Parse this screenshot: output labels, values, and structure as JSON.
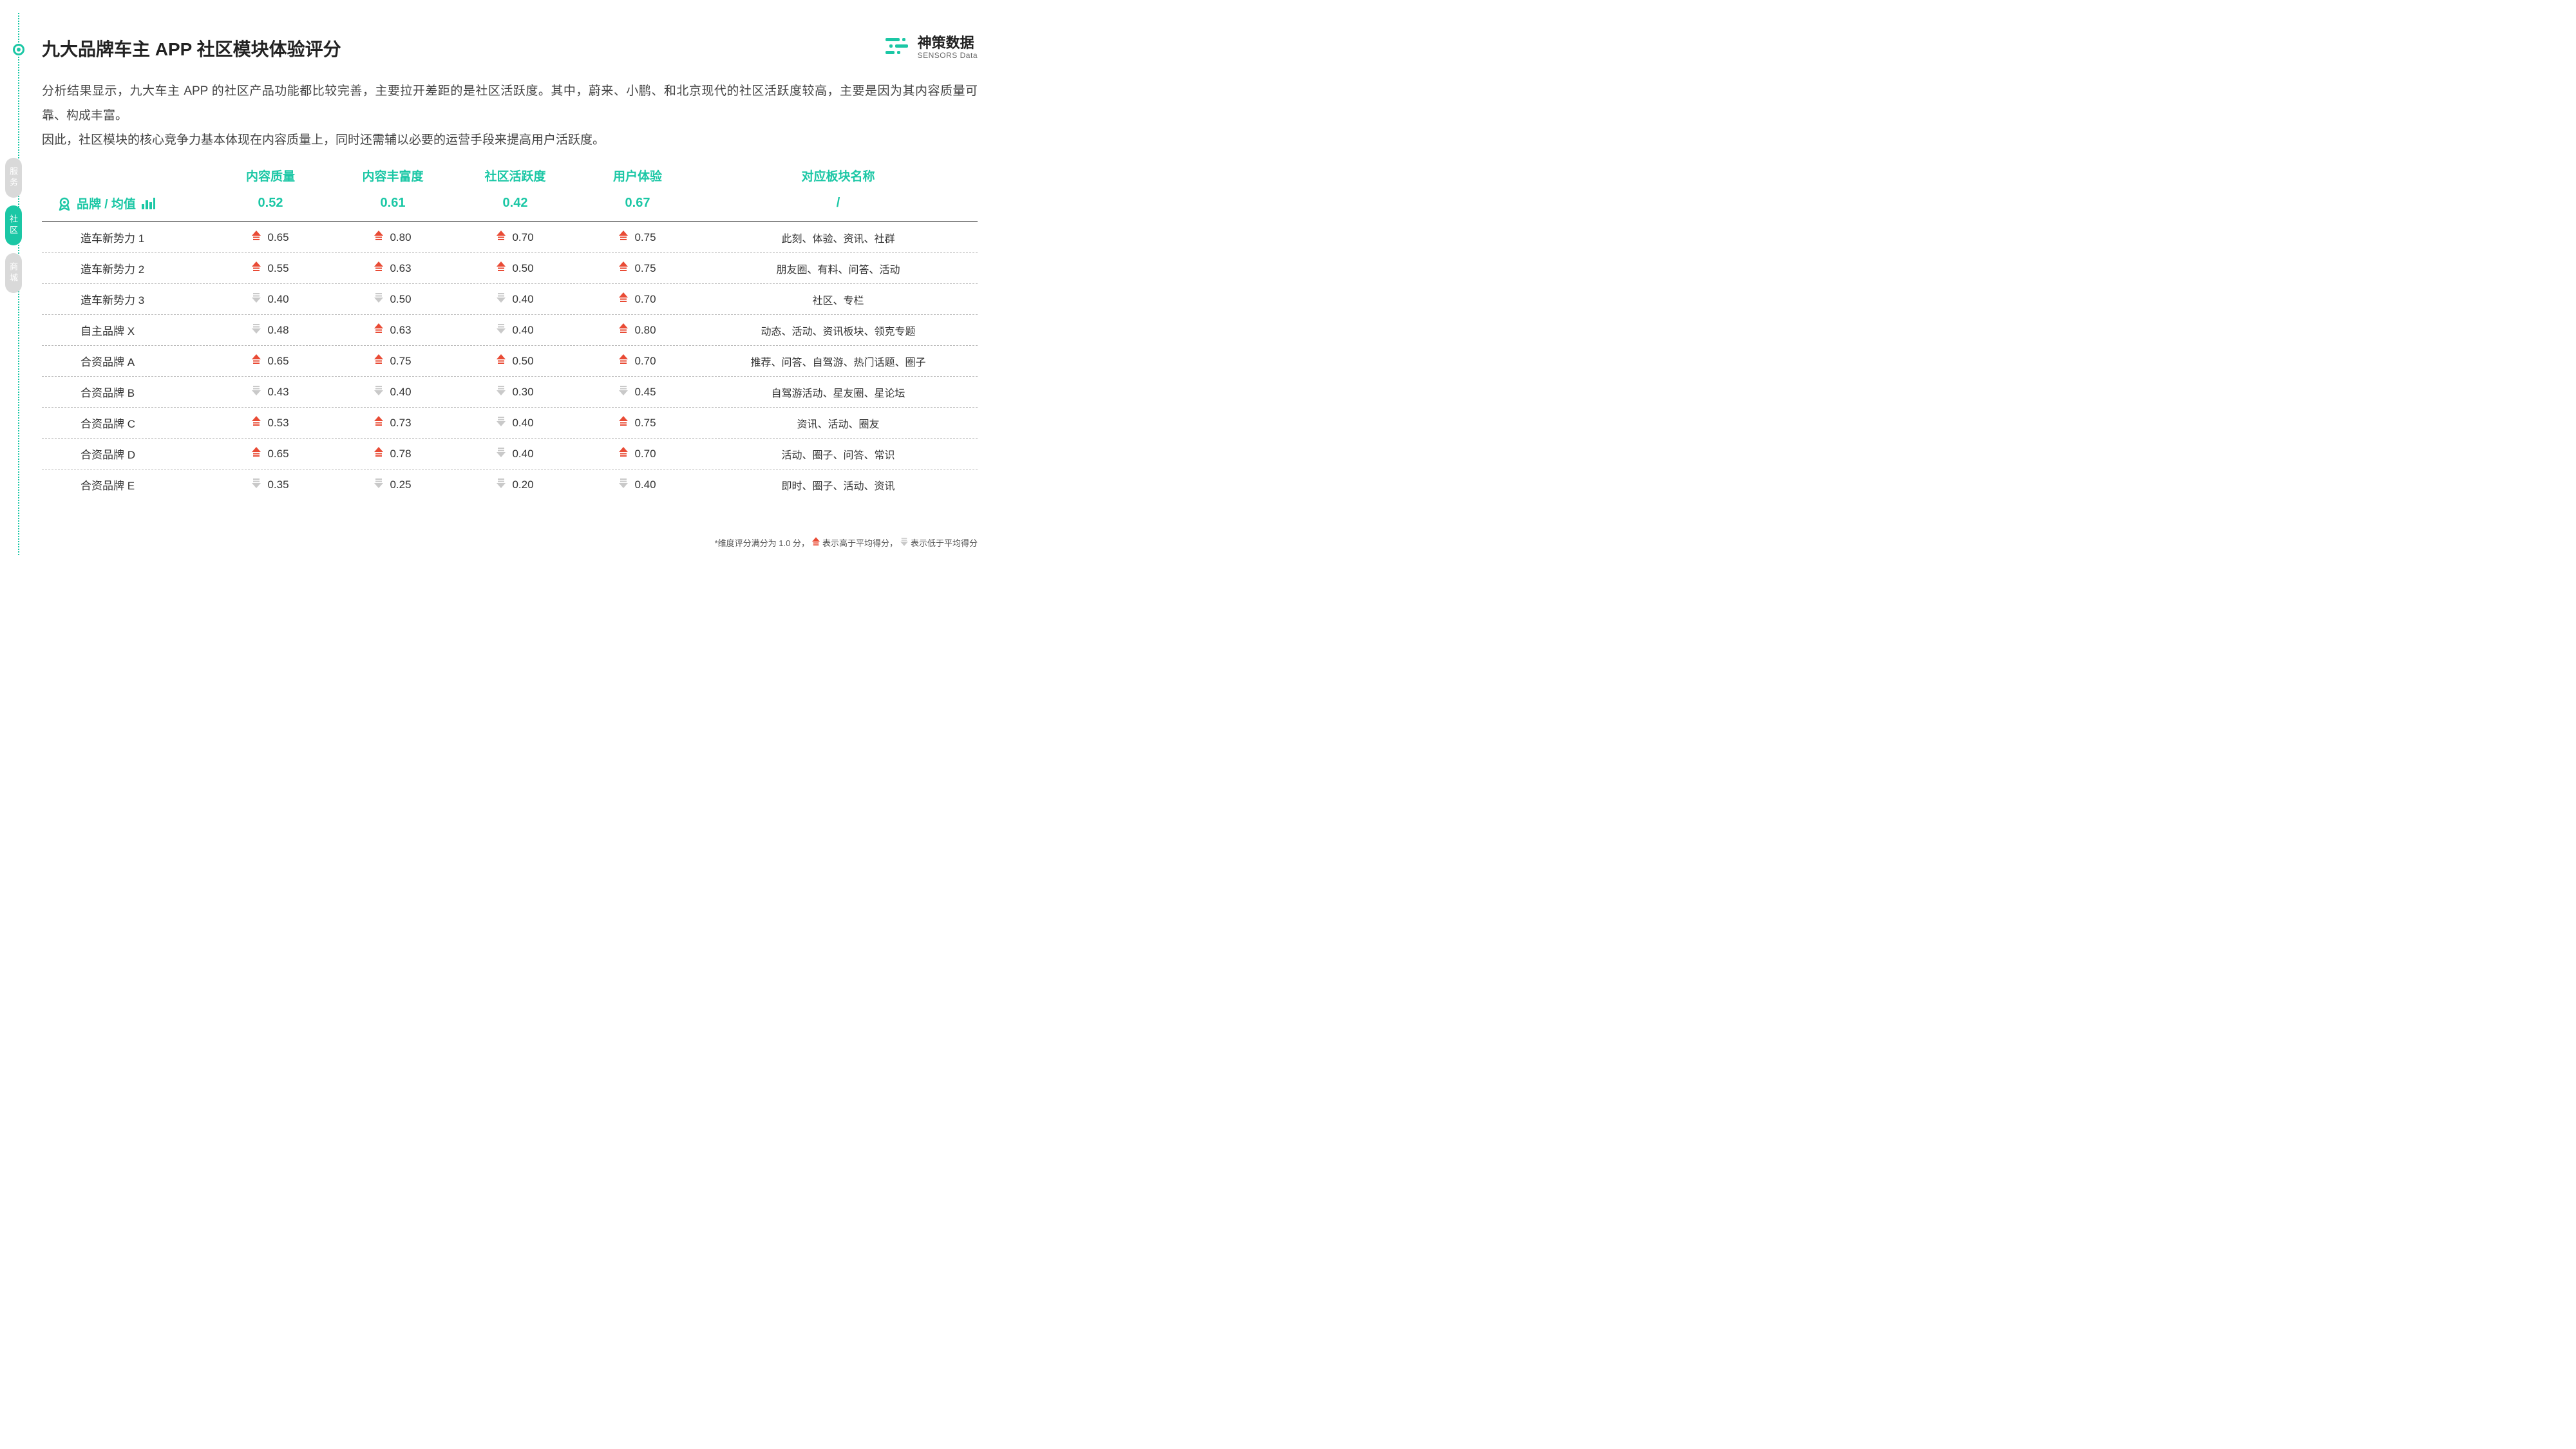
{
  "colors": {
    "accent": "#1bc7a5",
    "up": "#e94b35",
    "down": "#c9c9c9",
    "text": "#333333",
    "border": "#888888"
  },
  "sideTabs": [
    {
      "label": "服务",
      "active": false
    },
    {
      "label": "社区",
      "active": true
    },
    {
      "label": "商城",
      "active": false
    }
  ],
  "title": "九大品牌车主 APP 社区模块体验评分",
  "logo": {
    "cn": "神策数据",
    "en": "SENSORS Data"
  },
  "description": "分析结果显示，九大车主 APP 的社区产品功能都比较完善，主要拉开差距的是社区活跃度。其中，蔚来、小鹏、和北京现代的社区活跃度较高，主要是因为其内容质量可靠、构成丰富。\n因此，社区模块的核心竞争力基本体现在内容质量上，同时还需辅以必要的运营手段来提高用户活跃度。",
  "table": {
    "rowHeaderLabel": "品牌 / 均值",
    "columns": [
      "内容质量",
      "内容丰富度",
      "社区活跃度",
      "用户体验",
      "对应板块名称"
    ],
    "averages": [
      "0.52",
      "0.61",
      "0.42",
      "0.67",
      "/"
    ],
    "rows": [
      {
        "brand": "造车新势力 1",
        "scores": [
          {
            "v": "0.65",
            "d": "up"
          },
          {
            "v": "0.80",
            "d": "up"
          },
          {
            "v": "0.70",
            "d": "up"
          },
          {
            "v": "0.75",
            "d": "up"
          }
        ],
        "sections": "此刻、体验、资讯、社群"
      },
      {
        "brand": "造车新势力 2",
        "scores": [
          {
            "v": "0.55",
            "d": "up"
          },
          {
            "v": "0.63",
            "d": "up"
          },
          {
            "v": "0.50",
            "d": "up"
          },
          {
            "v": "0.75",
            "d": "up"
          }
        ],
        "sections": "朋友圈、有料、问答、活动"
      },
      {
        "brand": "造车新势力 3",
        "scores": [
          {
            "v": "0.40",
            "d": "down"
          },
          {
            "v": "0.50",
            "d": "down"
          },
          {
            "v": "0.40",
            "d": "down"
          },
          {
            "v": "0.70",
            "d": "up"
          }
        ],
        "sections": "社区、专栏"
      },
      {
        "brand": "自主品牌 X",
        "scores": [
          {
            "v": "0.48",
            "d": "down"
          },
          {
            "v": "0.63",
            "d": "up"
          },
          {
            "v": "0.40",
            "d": "down"
          },
          {
            "v": "0.80",
            "d": "up"
          }
        ],
        "sections": "动态、活动、资讯板块、领克专题"
      },
      {
        "brand": "合资品牌 A",
        "scores": [
          {
            "v": "0.65",
            "d": "up"
          },
          {
            "v": "0.75",
            "d": "up"
          },
          {
            "v": "0.50",
            "d": "up"
          },
          {
            "v": "0.70",
            "d": "up"
          }
        ],
        "sections": "推荐、问答、自驾游、热门话题、圈子"
      },
      {
        "brand": "合资品牌 B",
        "scores": [
          {
            "v": "0.43",
            "d": "down"
          },
          {
            "v": "0.40",
            "d": "down"
          },
          {
            "v": "0.30",
            "d": "down"
          },
          {
            "v": "0.45",
            "d": "down"
          }
        ],
        "sections": "自驾游活动、星友圈、星论坛"
      },
      {
        "brand": "合资品牌 C",
        "scores": [
          {
            "v": "0.53",
            "d": "up"
          },
          {
            "v": "0.73",
            "d": "up"
          },
          {
            "v": "0.40",
            "d": "down"
          },
          {
            "v": "0.75",
            "d": "up"
          }
        ],
        "sections": "资讯、活动、圈友"
      },
      {
        "brand": "合资品牌 D",
        "scores": [
          {
            "v": "0.65",
            "d": "up"
          },
          {
            "v": "0.78",
            "d": "up"
          },
          {
            "v": "0.40",
            "d": "down"
          },
          {
            "v": "0.70",
            "d": "up"
          }
        ],
        "sections": "活动、圈子、问答、常识"
      },
      {
        "brand": "合资品牌 E",
        "scores": [
          {
            "v": "0.35",
            "d": "down"
          },
          {
            "v": "0.25",
            "d": "down"
          },
          {
            "v": "0.20",
            "d": "down"
          },
          {
            "v": "0.40",
            "d": "down"
          }
        ],
        "sections": "即时、圈子、活动、资讯"
      }
    ]
  },
  "footnote": {
    "prefix": "*维度评分满分为 1.0 分，",
    "upText": " 表示高于平均得分，",
    "downText": " 表示低于平均得分"
  }
}
